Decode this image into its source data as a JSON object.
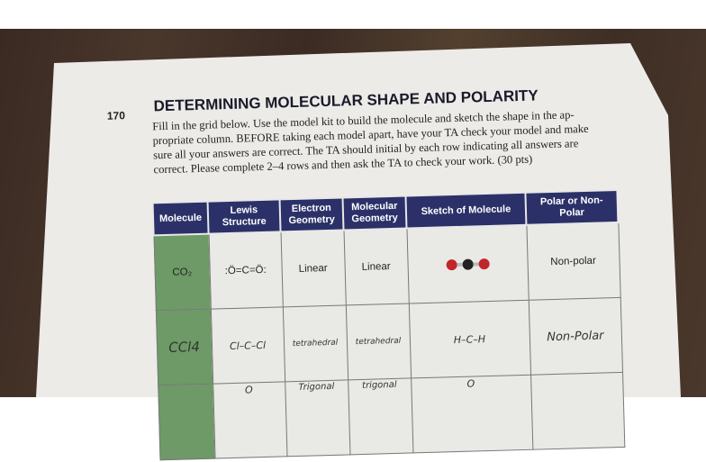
{
  "page": {
    "number": "170",
    "title": "DETERMINING MOLECULAR SHAPE AND POLARITY",
    "instructions_lines": [
      "Fill in the grid below. Use the model kit to build the molecule and sketch the shape in the ap-",
      "propriate column. BEFORE taking each model apart, have your TA check your model and make",
      "sure all your answers are correct. The TA should initial by each row indicating all answers are",
      "correct. Please complete 2–4 rows and then ask the TA to check your work. (30 pts)"
    ]
  },
  "table": {
    "headers": [
      "Molecule",
      "Lewis Structure",
      "Electron Geometry",
      "Molecular Geometry",
      "Sketch of Molecule",
      "Polar or Non-Polar"
    ],
    "rows": [
      {
        "molecule": "CO₂",
        "lewis": ":Ö=C=Ö:",
        "electron_geometry": "Linear",
        "molecular_geometry": "Linear",
        "sketch": "ball-and-stick model",
        "polarity": "Non-polar"
      },
      {
        "molecule": "CCl4",
        "lewis": "Cl–C–Cl",
        "electron_geometry": "tetrahedral",
        "molecular_geometry": "tetrahedral",
        "sketch": "H–C–H",
        "polarity": "Non-Polar"
      },
      {
        "molecule": "",
        "lewis": "O",
        "electron_geometry": "Trigonal",
        "molecular_geometry": "trigonal",
        "sketch": "O",
        "polarity": ""
      }
    ]
  },
  "colors": {
    "header": "#2b3168",
    "molecule_column": "#6d9a66",
    "oxygen": "#c0262a",
    "carbon": "#222222"
  }
}
